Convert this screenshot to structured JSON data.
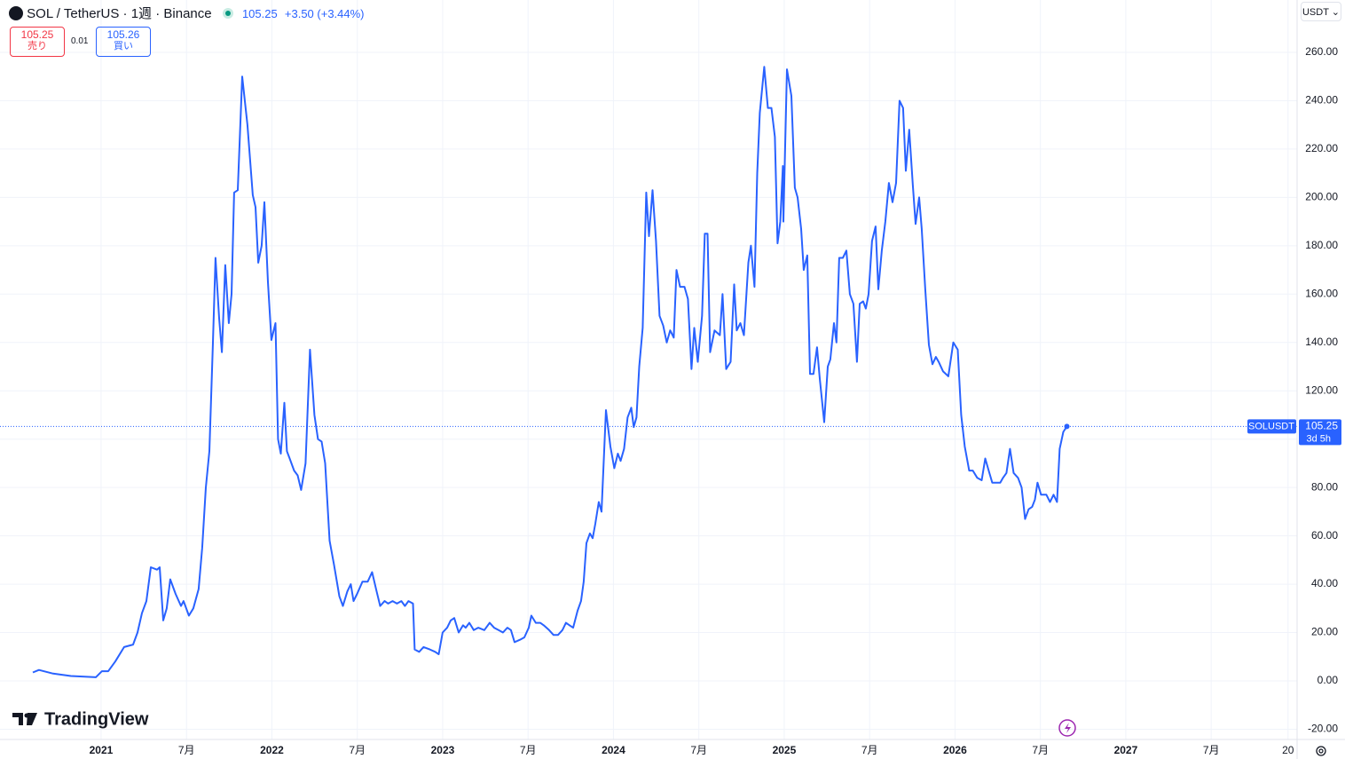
{
  "header": {
    "symbol": "SOL / TetherUS · 1週 · Binance",
    "price": "105.25",
    "change": "+3.50 (+3.44%)",
    "sell_price": "105.25",
    "sell_label": "売り",
    "spread": "0.01",
    "buy_price": "105.26",
    "buy_label": "買い",
    "currency": "USDT",
    "brand": "TradingView"
  },
  "chart_data": {
    "type": "line",
    "countdown": "3d 5h",
    "grid": true,
    "xlim": [
      2020.408,
      2028.003
    ],
    "ylim": [
      -24.24,
      281.67
    ],
    "xticks": [
      2021,
      {
        "value": 2021.5,
        "label": "7月"
      },
      2022,
      {
        "value": 2022.5,
        "label": "7月"
      },
      2023,
      {
        "value": 2023.5,
        "label": "7月"
      },
      2024,
      {
        "value": 2024.5,
        "label": "7月"
      },
      2025,
      {
        "value": 2025.5,
        "label": "7月"
      },
      2026,
      {
        "value": 2026.5,
        "label": "7月"
      },
      2027,
      {
        "value": 2027.5,
        "label": "7月"
      },
      {
        "value": 2027.95,
        "label": "20"
      }
    ],
    "yticks": [
      {
        "value": -20,
        "label": "-20.00"
      },
      {
        "value": 0,
        "label": "0.00"
      },
      {
        "value": 20,
        "label": "20.00"
      },
      {
        "value": 40,
        "label": "40.00"
      },
      {
        "value": 60,
        "label": "60.00"
      },
      {
        "value": 80,
        "label": "80.00"
      },
      {
        "value": 100,
        "label": "100.00"
      },
      {
        "value": 120,
        "label": "120.00"
      },
      {
        "value": 140,
        "label": "140.00"
      },
      {
        "value": 160,
        "label": "160.00"
      },
      {
        "value": 180,
        "label": "180.00"
      },
      {
        "value": 200,
        "label": "200.00"
      },
      {
        "value": 220,
        "label": "220.00"
      },
      {
        "value": 240,
        "label": "240.00"
      },
      {
        "value": 260,
        "label": "260.00"
      }
    ],
    "x": [
      2020.6,
      2020.636,
      2020.719,
      2020.823,
      2020.969,
      2021.005,
      2021.042,
      2021.083,
      2021.135,
      2021.187,
      2021.213,
      2021.239,
      2021.265,
      2021.291,
      2021.327,
      2021.343,
      2021.364,
      2021.384,
      2021.405,
      2021.436,
      2021.468,
      2021.483,
      2021.514,
      2021.54,
      2021.571,
      2021.592,
      2021.613,
      2021.634,
      2021.655,
      2021.67,
      2021.691,
      2021.707,
      2021.727,
      2021.748,
      2021.764,
      2021.779,
      2021.8,
      2021.826,
      2021.857,
      2021.888,
      2021.904,
      2021.92,
      2021.94,
      2021.956,
      2021.977,
      2021.997,
      2022.021,
      2022.036,
      2022.052,
      2022.073,
      2022.088,
      2022.104,
      2022.13,
      2022.151,
      2022.171,
      2022.197,
      2022.223,
      2022.249,
      2022.27,
      2022.291,
      2022.312,
      2022.338,
      2022.364,
      2022.395,
      2022.416,
      2022.442,
      2022.462,
      2022.478,
      2022.499,
      2022.53,
      2022.561,
      2022.587,
      2022.613,
      2022.634,
      2022.66,
      2022.681,
      2022.707,
      2022.732,
      2022.758,
      2022.779,
      2022.8,
      2022.826,
      2022.836,
      2022.862,
      2022.888,
      2022.925,
      2022.956,
      2022.977,
      2023.0,
      2023.026,
      2023.047,
      2023.068,
      2023.094,
      2023.119,
      2023.135,
      2023.156,
      2023.182,
      2023.208,
      2023.244,
      2023.275,
      2023.301,
      2023.327,
      2023.353,
      2023.379,
      2023.4,
      2023.421,
      2023.452,
      2023.478,
      2023.504,
      2023.519,
      2023.545,
      2023.571,
      2023.592,
      2023.623,
      2023.649,
      2023.675,
      2023.701,
      2023.722,
      2023.743,
      2023.764,
      2023.79,
      2023.81,
      2023.826,
      2023.842,
      2023.862,
      2023.878,
      2023.894,
      2023.914,
      2023.93,
      2023.956,
      2023.982,
      2024.005,
      2024.026,
      2024.042,
      2024.062,
      2024.083,
      2024.104,
      2024.119,
      2024.135,
      2024.151,
      2024.171,
      2024.192,
      2024.208,
      2024.229,
      2024.249,
      2024.27,
      2024.291,
      2024.312,
      2024.332,
      2024.353,
      2024.369,
      2024.39,
      2024.416,
      2024.436,
      2024.457,
      2024.473,
      2024.494,
      2024.519,
      2024.535,
      2024.551,
      2024.566,
      2024.592,
      2024.623,
      2024.639,
      2024.66,
      2024.686,
      2024.707,
      2024.722,
      2024.743,
      2024.764,
      2024.79,
      2024.805,
      2024.826,
      2024.842,
      2024.857,
      2024.883,
      2024.904,
      2024.925,
      2024.945,
      2024.961,
      2024.977,
      2024.992,
      2024.995,
      2025.016,
      2025.042,
      2025.062,
      2025.078,
      2025.099,
      2025.114,
      2025.135,
      2025.151,
      2025.171,
      2025.192,
      2025.208,
      2025.234,
      2025.255,
      2025.27,
      2025.291,
      2025.306,
      2025.322,
      2025.343,
      2025.364,
      2025.384,
      2025.405,
      2025.426,
      2025.442,
      2025.462,
      2025.478,
      2025.494,
      2025.514,
      2025.535,
      2025.551,
      2025.571,
      2025.592,
      2025.613,
      2025.634,
      2025.655,
      2025.675,
      2025.696,
      2025.712,
      2025.732,
      2025.753,
      2025.769,
      2025.79,
      2025.805,
      2025.826,
      2025.847,
      2025.868,
      2025.888,
      2025.904,
      2025.93,
      2025.961,
      2025.99,
      2026.016,
      2026.036,
      2026.057,
      2026.083,
      2026.104,
      2026.13,
      2026.156,
      2026.177,
      2026.197,
      2026.218,
      2026.239,
      2026.265,
      2026.281,
      2026.301,
      2026.322,
      2026.343,
      2026.369,
      2026.39,
      2026.41,
      2026.431,
      2026.452,
      2026.468,
      2026.483,
      2026.504,
      2026.535,
      2026.556,
      2026.577,
      2026.597,
      2026.613,
      2026.634,
      2026.655
    ],
    "series": [
      {
        "name": "SOLUSDT",
        "color": "#2962ff",
        "values": [
          3.5,
          4.5,
          3,
          2,
          1.5,
          4,
          4,
          8,
          14,
          15,
          20,
          28,
          33,
          47,
          46,
          47,
          25,
          30,
          42,
          36,
          31,
          33,
          27,
          30,
          38,
          55,
          80,
          95,
          140,
          175,
          150,
          136,
          172,
          148,
          160,
          202,
          203,
          250,
          230,
          201,
          196,
          173,
          180,
          198,
          165,
          141,
          148,
          100,
          94,
          115,
          95,
          92,
          87,
          85,
          79,
          90,
          137,
          110,
          100,
          99,
          90,
          58,
          48,
          35,
          31,
          37,
          40,
          33,
          36,
          41,
          41,
          45,
          37,
          31,
          33,
          32,
          33,
          32,
          33,
          31,
          33,
          32,
          13,
          12,
          14,
          13,
          12,
          11,
          20,
          22,
          25,
          26,
          20,
          23,
          22,
          24,
          21,
          22,
          21,
          24,
          22,
          21,
          20,
          22,
          21,
          16,
          17,
          18,
          22,
          27,
          24,
          24,
          23,
          21,
          19,
          19,
          21,
          24,
          23,
          22,
          29,
          33,
          41,
          57,
          61,
          59,
          65,
          74,
          70,
          112,
          97,
          88,
          94,
          91,
          96,
          109,
          113,
          105,
          109,
          130,
          146,
          202,
          184,
          203,
          182,
          151,
          147,
          140,
          145,
          142,
          170,
          163,
          163,
          158,
          129,
          146,
          132,
          151,
          185,
          185,
          136,
          145,
          143,
          160,
          129,
          132,
          164,
          145,
          148,
          143,
          173,
          180,
          163,
          210,
          235,
          254,
          237,
          237,
          225,
          181,
          190,
          213,
          190,
          253,
          242,
          204,
          200,
          187,
          170,
          176,
          127,
          127,
          138,
          125,
          107,
          130,
          133,
          148,
          140,
          175,
          175,
          178,
          160,
          156,
          132,
          156,
          157,
          154,
          160,
          182,
          188,
          162,
          178,
          190,
          206,
          198,
          206,
          240,
          237,
          211,
          228,
          205,
          189,
          200,
          187,
          162,
          139,
          131,
          134,
          132,
          128,
          126,
          140,
          137,
          110,
          97,
          87,
          87,
          84,
          83,
          92,
          87,
          82,
          82,
          82,
          84,
          86,
          96,
          86,
          84,
          80,
          67,
          71,
          72,
          75,
          82,
          77,
          77,
          74,
          77,
          74,
          96,
          103,
          105.25
        ]
      }
    ]
  }
}
